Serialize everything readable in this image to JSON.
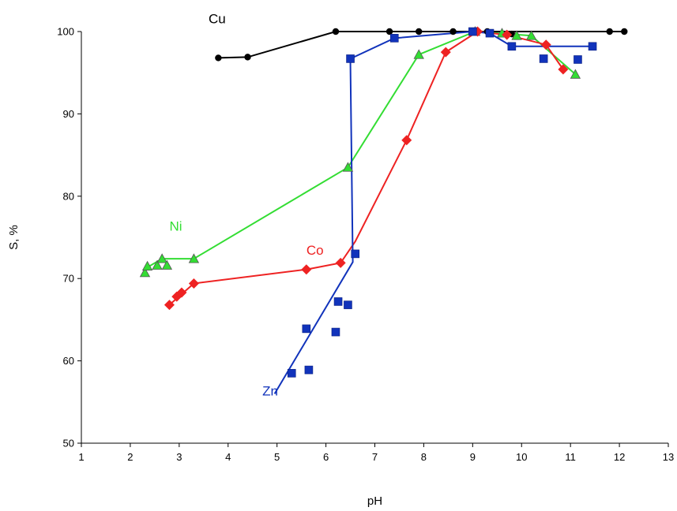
{
  "chart_data": {
    "type": "scatter",
    "xlabel": "pH",
    "ylabel": "S, %",
    "xlim": [
      1,
      13
    ],
    "ylim": [
      50,
      100
    ],
    "xticks": [
      1,
      2,
      3,
      4,
      5,
      6,
      7,
      8,
      9,
      10,
      11,
      12,
      13
    ],
    "yticks": [
      50,
      60,
      70,
      80,
      90,
      100
    ],
    "grid": false,
    "series": [
      {
        "name": "Cu",
        "color": "#000000",
        "marker": "circle",
        "label_pos": [
          3.6,
          101.0
        ],
        "points": [
          [
            3.8,
            96.8
          ],
          [
            4.4,
            96.9
          ],
          [
            6.2,
            100.0
          ],
          [
            7.3,
            100.0
          ],
          [
            7.9,
            100.0
          ],
          [
            8.6,
            100.0
          ],
          [
            9.0,
            100.0
          ],
          [
            9.3,
            100.0
          ],
          [
            9.8,
            99.7
          ],
          [
            11.8,
            100.0
          ],
          [
            12.1,
            100.0
          ]
        ],
        "line": [
          [
            3.8,
            96.8
          ],
          [
            4.4,
            96.9
          ],
          [
            6.2,
            100.0
          ],
          [
            12.1,
            100.0
          ]
        ]
      },
      {
        "name": "Ni",
        "color": "#33dd33",
        "marker": "triangle",
        "label_pos": [
          2.8,
          75.8
        ],
        "points": [
          [
            2.3,
            70.7
          ],
          [
            2.35,
            71.5
          ],
          [
            2.55,
            71.6
          ],
          [
            2.65,
            72.4
          ],
          [
            2.75,
            71.6
          ],
          [
            3.3,
            72.4
          ],
          [
            6.45,
            83.5
          ],
          [
            7.9,
            97.2
          ],
          [
            9.05,
            100.0
          ],
          [
            9.6,
            99.8
          ],
          [
            9.9,
            99.5
          ],
          [
            10.2,
            99.5
          ],
          [
            11.1,
            94.8
          ]
        ],
        "line": [
          [
            2.3,
            71.2
          ],
          [
            2.65,
            72.4
          ],
          [
            3.3,
            72.4
          ],
          [
            6.45,
            83.5
          ],
          [
            7.9,
            97.2
          ],
          [
            9.05,
            100.0
          ],
          [
            10.2,
            99.5
          ],
          [
            11.1,
            94.8
          ]
        ]
      },
      {
        "name": "Co",
        "color": "#ee2222",
        "marker": "diamond",
        "label_pos": [
          5.6,
          72.9
        ],
        "points": [
          [
            2.8,
            66.8
          ],
          [
            2.95,
            67.8
          ],
          [
            3.05,
            68.3
          ],
          [
            3.3,
            69.4
          ],
          [
            5.6,
            71.1
          ],
          [
            6.3,
            71.9
          ],
          [
            7.65,
            86.8
          ],
          [
            8.45,
            97.5
          ],
          [
            9.1,
            100.0
          ],
          [
            9.7,
            99.6
          ],
          [
            10.5,
            98.4
          ],
          [
            10.85,
            95.4
          ]
        ],
        "line": [
          [
            2.8,
            66.8
          ],
          [
            3.3,
            69.4
          ],
          [
            5.6,
            71.1
          ],
          [
            6.3,
            71.9
          ],
          [
            6.6,
            74.5
          ],
          [
            7.65,
            86.8
          ],
          [
            8.45,
            97.5
          ],
          [
            9.1,
            100.0
          ],
          [
            9.7,
            99.6
          ],
          [
            10.5,
            98.4
          ],
          [
            10.85,
            95.4
          ]
        ]
      },
      {
        "name": "Zn",
        "color": "#1133bb",
        "marker": "square",
        "label_pos": [
          4.7,
          55.8
        ],
        "points": [
          [
            5.3,
            58.5
          ],
          [
            5.6,
            63.9
          ],
          [
            5.65,
            58.9
          ],
          [
            6.2,
            63.5
          ],
          [
            6.25,
            67.2
          ],
          [
            6.45,
            66.8
          ],
          [
            6.5,
            96.7
          ],
          [
            6.6,
            73.0
          ],
          [
            7.4,
            99.2
          ],
          [
            9.0,
            100.0
          ],
          [
            9.35,
            99.8
          ],
          [
            9.8,
            98.2
          ],
          [
            10.45,
            96.7
          ],
          [
            11.15,
            96.6
          ],
          [
            11.45,
            98.2
          ]
        ],
        "line": [
          [
            4.95,
            56.0
          ],
          [
            6.55,
            72.0
          ],
          [
            6.5,
            96.7
          ],
          [
            7.4,
            99.2
          ],
          [
            9.0,
            100.0
          ],
          [
            9.35,
            99.8
          ],
          [
            9.8,
            98.2
          ],
          [
            11.45,
            98.2
          ]
        ]
      }
    ]
  }
}
